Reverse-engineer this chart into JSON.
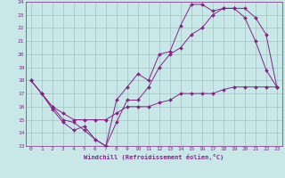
{
  "xlabel": "Windchill (Refroidissement éolien,°C)",
  "bg_color": "#c8e8e8",
  "line_color": "#882288",
  "grid_color": "#99bbbb",
  "xlim": [
    -0.5,
    23.5
  ],
  "ylim": [
    13,
    24
  ],
  "xticks": [
    0,
    1,
    2,
    3,
    4,
    5,
    6,
    7,
    8,
    9,
    10,
    11,
    12,
    13,
    14,
    15,
    16,
    17,
    18,
    19,
    20,
    21,
    22,
    23
  ],
  "yticks": [
    13,
    14,
    15,
    16,
    17,
    18,
    19,
    20,
    21,
    22,
    23,
    24
  ],
  "line1_x": [
    0,
    1,
    2,
    3,
    4,
    5,
    6,
    7,
    8,
    9,
    10,
    11,
    12,
    13,
    14,
    15,
    16,
    17,
    18,
    19,
    20,
    21,
    22,
    23
  ],
  "line1_y": [
    18,
    17,
    16,
    15,
    14.8,
    14.2,
    13.5,
    13.0,
    16.5,
    17.5,
    18.5,
    18.0,
    20.0,
    20.2,
    22.2,
    23.8,
    23.8,
    23.3,
    23.5,
    23.5,
    22.8,
    21.0,
    18.8,
    17.5
  ],
  "line2_x": [
    0,
    1,
    2,
    3,
    4,
    5,
    6,
    7,
    8,
    9,
    10,
    11,
    12,
    13,
    14,
    15,
    16,
    17,
    18,
    19,
    20,
    21,
    22,
    23
  ],
  "line2_y": [
    18,
    17,
    15.8,
    14.8,
    14.2,
    14.5,
    13.5,
    13.0,
    14.8,
    16.5,
    16.5,
    17.5,
    19.0,
    20.0,
    20.5,
    21.5,
    22.0,
    23.0,
    23.5,
    23.5,
    23.5,
    22.8,
    21.5,
    17.5
  ],
  "line3_x": [
    0,
    1,
    2,
    3,
    4,
    5,
    6,
    7,
    8,
    9,
    10,
    11,
    12,
    13,
    14,
    15,
    16,
    17,
    18,
    19,
    20,
    21,
    22,
    23
  ],
  "line3_y": [
    18,
    17.0,
    16.0,
    15.5,
    15.0,
    15.0,
    15.0,
    15.0,
    15.5,
    16.0,
    16.0,
    16.0,
    16.3,
    16.5,
    17.0,
    17.0,
    17.0,
    17.0,
    17.3,
    17.5,
    17.5,
    17.5,
    17.5,
    17.5
  ]
}
